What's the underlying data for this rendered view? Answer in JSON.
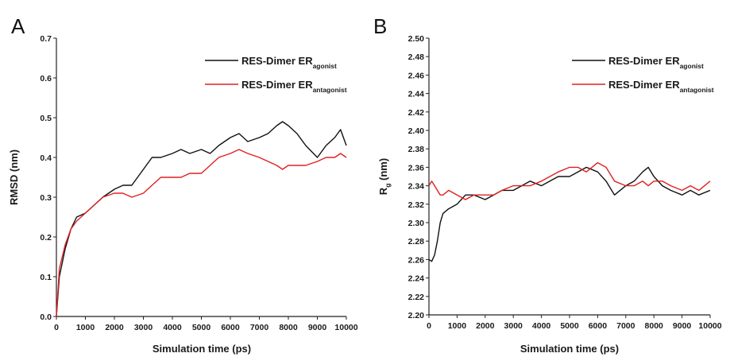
{
  "chart_data": [
    {
      "type": "line",
      "panel_label": "A",
      "xlabel": "Simulation time (ps)",
      "ylabel": "RMSD (nm)",
      "xlim": [
        0,
        10000
      ],
      "ylim": [
        0,
        0.7
      ],
      "xticks": [
        0,
        1000,
        2000,
        3000,
        4000,
        5000,
        6000,
        7000,
        8000,
        9000,
        10000
      ],
      "yticks": [
        0.0,
        0.1,
        0.2,
        0.3,
        0.4,
        0.5,
        0.6,
        0.7
      ],
      "ytick_labels": [
        "0.0",
        "0.1",
        "0.2",
        "0.3",
        "0.4",
        "0.5",
        "0.6",
        "0.7"
      ],
      "grid": false,
      "legend_position": "top-right",
      "x": [
        0,
        100,
        300,
        500,
        700,
        1000,
        1300,
        1600,
        2000,
        2300,
        2600,
        3000,
        3300,
        3600,
        4000,
        4300,
        4600,
        5000,
        5300,
        5600,
        6000,
        6300,
        6600,
        7000,
        7300,
        7600,
        7800,
        8000,
        8300,
        8600,
        9000,
        9300,
        9600,
        9800,
        10000
      ],
      "series": [
        {
          "name_main": "RES-Dimer ER",
          "name_sub": "agonist",
          "color": "#111111",
          "values": [
            0.0,
            0.1,
            0.17,
            0.22,
            0.25,
            0.26,
            0.28,
            0.3,
            0.32,
            0.33,
            0.33,
            0.37,
            0.4,
            0.4,
            0.41,
            0.42,
            0.41,
            0.42,
            0.41,
            0.43,
            0.45,
            0.46,
            0.44,
            0.45,
            0.46,
            0.48,
            0.49,
            0.48,
            0.46,
            0.43,
            0.4,
            0.43,
            0.45,
            0.47,
            0.43
          ]
        },
        {
          "name_main": "RES-Dimer ER",
          "name_sub": "antagonist",
          "color": "#e02020",
          "values": [
            0.0,
            0.12,
            0.18,
            0.22,
            0.24,
            0.26,
            0.28,
            0.3,
            0.31,
            0.31,
            0.3,
            0.31,
            0.33,
            0.35,
            0.35,
            0.35,
            0.36,
            0.36,
            0.38,
            0.4,
            0.41,
            0.42,
            0.41,
            0.4,
            0.39,
            0.38,
            0.37,
            0.38,
            0.38,
            0.38,
            0.39,
            0.4,
            0.4,
            0.41,
            0.4
          ]
        }
      ]
    },
    {
      "type": "line",
      "panel_label": "B",
      "xlabel": "Simulation time (ps)",
      "ylabel_main": "R",
      "ylabel_sub": "g",
      "ylabel_unit": " (nm)",
      "xlim": [
        0,
        10000
      ],
      "ylim": [
        2.2,
        2.5
      ],
      "xticks": [
        0,
        1000,
        2000,
        3000,
        4000,
        5000,
        6000,
        7000,
        8000,
        9000,
        10000
      ],
      "yticks": [
        2.2,
        2.22,
        2.24,
        2.26,
        2.28,
        2.3,
        2.32,
        2.34,
        2.36,
        2.38,
        2.4,
        2.42,
        2.44,
        2.46,
        2.48,
        2.5
      ],
      "ytick_labels": [
        "2.20",
        "2.22",
        "2.24",
        "2.26",
        "2.28",
        "2.30",
        "2.32",
        "2.34",
        "2.36",
        "2.38",
        "2.40",
        "2.42",
        "2.44",
        "2.46",
        "2.48",
        "2.50"
      ],
      "grid": false,
      "legend_position": "top-right",
      "x": [
        0,
        100,
        200,
        300,
        400,
        500,
        700,
        1000,
        1300,
        1600,
        2000,
        2300,
        2600,
        3000,
        3300,
        3600,
        4000,
        4300,
        4600,
        5000,
        5300,
        5600,
        6000,
        6300,
        6600,
        7000,
        7300,
        7600,
        7800,
        8000,
        8300,
        8600,
        9000,
        9300,
        9600,
        10000
      ],
      "series": [
        {
          "name_main": "RES-Dimer ER",
          "name_sub": "agonist",
          "color": "#111111",
          "values": [
            2.26,
            2.258,
            2.265,
            2.28,
            2.3,
            2.31,
            2.315,
            2.32,
            2.33,
            2.33,
            2.325,
            2.33,
            2.335,
            2.335,
            2.34,
            2.345,
            2.34,
            2.345,
            2.35,
            2.35,
            2.355,
            2.36,
            2.355,
            2.345,
            2.33,
            2.34,
            2.345,
            2.355,
            2.36,
            2.35,
            2.34,
            2.335,
            2.33,
            2.335,
            2.33,
            2.335
          ]
        },
        {
          "name_main": "RES-Dimer ER",
          "name_sub": "antagonist",
          "color": "#e02020",
          "values": [
            2.34,
            2.345,
            2.34,
            2.335,
            2.33,
            2.33,
            2.335,
            2.33,
            2.325,
            2.33,
            2.33,
            2.33,
            2.335,
            2.34,
            2.34,
            2.34,
            2.345,
            2.35,
            2.355,
            2.36,
            2.36,
            2.355,
            2.365,
            2.36,
            2.345,
            2.34,
            2.34,
            2.345,
            2.34,
            2.345,
            2.345,
            2.34,
            2.335,
            2.34,
            2.335,
            2.345
          ]
        }
      ]
    }
  ]
}
